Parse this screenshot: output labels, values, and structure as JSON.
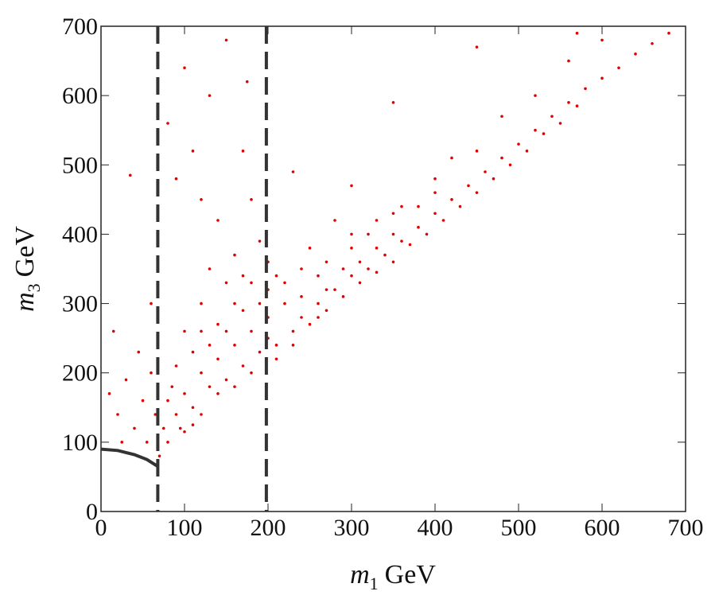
{
  "chart_data": {
    "type": "scatter",
    "x_label": {
      "symbol": "m",
      "subscript": "1",
      "unit": "GeV"
    },
    "y_label": {
      "symbol": "m",
      "subscript": "3",
      "unit": "GeV"
    },
    "color": "#e00000",
    "xlim": [
      0,
      700
    ],
    "ylim": [
      0,
      700
    ],
    "xticks": [
      0,
      100,
      200,
      300,
      400,
      500,
      600,
      700
    ],
    "yticks": [
      0,
      100,
      200,
      300,
      400,
      500,
      600,
      700
    ],
    "vlines": [
      68,
      198
    ],
    "curve": {
      "x": [
        0,
        20,
        40,
        55,
        68
      ],
      "y": [
        90,
        88,
        82,
        75,
        65
      ]
    },
    "x": [
      90,
      100,
      110,
      120,
      130,
      140,
      150,
      160,
      170,
      180,
      190,
      200,
      210,
      220,
      230,
      240,
      250,
      260,
      270,
      280,
      290,
      300,
      310,
      320,
      330,
      340,
      350,
      360,
      370,
      380,
      390,
      400,
      410,
      420,
      430,
      440,
      450,
      460,
      470,
      480,
      490,
      500,
      510,
      520,
      530,
      540,
      550,
      560,
      570,
      580,
      600,
      620,
      640,
      660,
      680,
      10,
      20,
      30,
      40,
      45,
      50,
      55,
      60,
      35,
      60,
      15,
      25,
      65,
      70,
      75,
      80,
      85,
      95,
      80,
      90,
      100,
      110,
      120,
      130,
      140,
      150,
      160,
      170,
      180,
      175,
      190,
      150,
      120,
      100,
      130,
      170,
      200,
      230,
      250,
      280,
      300,
      350,
      320,
      260,
      220,
      240,
      300,
      360,
      400,
      450,
      420,
      480,
      520,
      560,
      570,
      450,
      600,
      200,
      210,
      230,
      260,
      180,
      160,
      140,
      120,
      110,
      100,
      200,
      150,
      170,
      190,
      130,
      110,
      90,
      80,
      120,
      140,
      160,
      180,
      210,
      240,
      270,
      300,
      330,
      350,
      380,
      400,
      350,
      310,
      290,
      270,
      330
    ],
    "values": [
      140,
      170,
      150,
      200,
      180,
      220,
      190,
      240,
      210,
      260,
      230,
      280,
      240,
      300,
      260,
      280,
      270,
      300,
      290,
      320,
      310,
      340,
      330,
      350,
      345,
      370,
      360,
      390,
      385,
      410,
      400,
      430,
      420,
      450,
      440,
      470,
      460,
      490,
      480,
      510,
      500,
      530,
      520,
      550,
      545,
      570,
      560,
      590,
      585,
      610,
      625,
      640,
      660,
      675,
      690,
      170,
      140,
      190,
      120,
      230,
      160,
      100,
      200,
      485,
      300,
      260,
      100,
      140,
      80,
      120,
      100,
      180,
      120,
      560,
      480,
      640,
      520,
      450,
      600,
      420,
      680,
      370,
      520,
      450,
      620,
      390,
      330,
      300,
      260,
      350,
      340,
      360,
      490,
      380,
      420,
      470,
      590,
      400,
      340,
      330,
      310,
      380,
      440,
      480,
      520,
      510,
      570,
      600,
      650,
      690,
      670,
      680,
      250,
      220,
      240,
      280,
      200,
      180,
      170,
      140,
      125,
      115,
      320,
      260,
      290,
      300,
      240,
      230,
      210,
      160,
      260,
      270,
      300,
      330,
      340,
      350,
      360,
      400,
      420,
      400,
      440,
      460,
      430,
      360,
      350,
      320,
      380
    ]
  }
}
